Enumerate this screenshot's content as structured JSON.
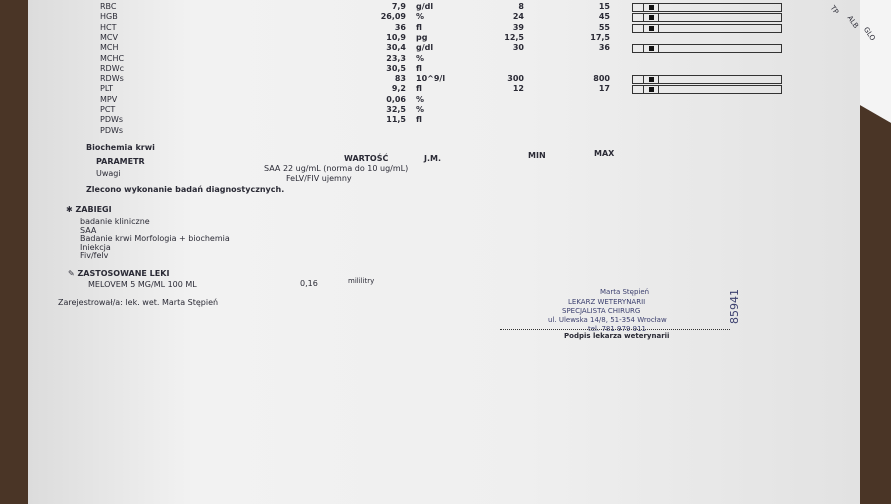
{
  "morphology": {
    "rows": [
      [
        "RBC",
        "7,9",
        "g/dl",
        "8",
        "15"
      ],
      [
        "HGB",
        "26,09",
        "%",
        "24",
        "45"
      ],
      [
        "HCT",
        "36",
        "fl",
        "39",
        "55"
      ],
      [
        "MCV",
        "10,9",
        "pg",
        "12,5",
        "17,5"
      ],
      [
        "MCH",
        "30,4",
        "g/dl",
        "30",
        "36"
      ],
      [
        "MCHC",
        "23,3",
        "%"
      ],
      [
        "RDWc",
        "30,5",
        "fl"
      ],
      [
        "RDWs",
        "83",
        "10^9/l",
        "300",
        "800"
      ],
      [
        "PLT",
        "9,2",
        "fl",
        "12",
        "17"
      ],
      [
        "MPV",
        "0,06",
        "%"
      ],
      [
        "PCT",
        "32,5",
        "%"
      ],
      [
        "PDWs",
        "11,5",
        "fl"
      ],
      [
        "PDWs"
      ]
    ]
  },
  "biochem": {
    "title": "Biochemia krwi",
    "headers": [
      "PARAMETR",
      "WARTOŚĆ",
      "J.M.",
      "MIN",
      "MAX"
    ],
    "remark_label": "Uwagi",
    "remark_lines": [
      "SAA 22 ug/mL (norma do 10 ug/mL)",
      "FeLV/FIV ujemny"
    ],
    "order_note": "Zlecono wykonanie badań diagnostycznych."
  },
  "procedures": {
    "title": "ZABIEGI",
    "items": [
      "badanie kliniczne",
      "SAA",
      "Badanie krwi Morfologia + biochemia",
      "Iniekcja",
      "Fiv/felv"
    ]
  },
  "drugs": {
    "title": "ZASTOSOWANE LEKI",
    "name": "MELOVEM 5 MG/ML 100 ML",
    "dose": "0,16",
    "unit": "mililitry"
  },
  "registered_by": "Zarejestrował/a: lek. wet. Marta Stępień",
  "stamp": {
    "lines": [
      "Marta Stępień",
      "LEKARZ WETERYNARII",
      "SPECJALISTA CHIRURG",
      "ul. Ulewska 14/8, 51-354 Wrocław",
      "tel. 781 979 911"
    ],
    "number": "85941",
    "caption": "Podpis lekarza weterynarii"
  },
  "side_slip": [
    "TP",
    "ALB",
    "GLO"
  ]
}
